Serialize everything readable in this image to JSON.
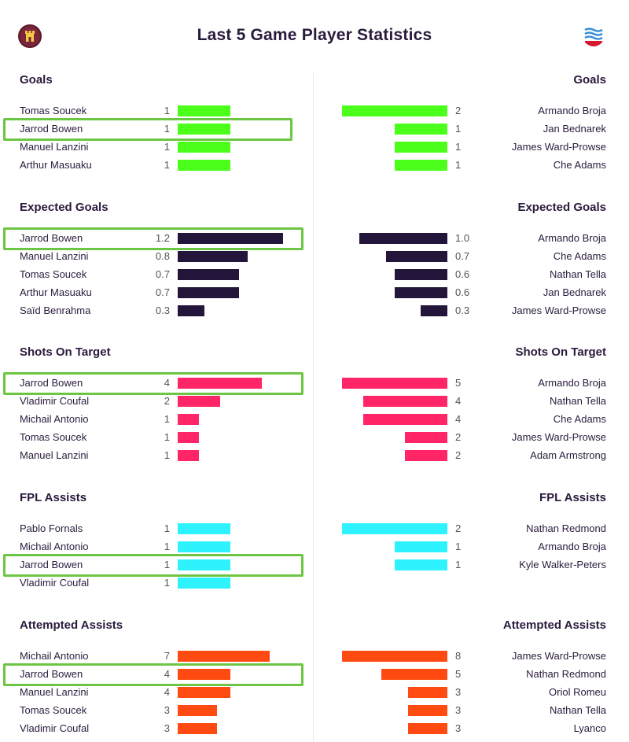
{
  "title": "Last 5 Game Player Statistics",
  "home_badge_icon": "castle-icon",
  "away_badge_icon": "waves-icon",
  "colors": {
    "goals": "#4cff1a",
    "expected_goals": "#24163a",
    "shots_on_target": "#ff2566",
    "fpl_assists": "#2ef3ff",
    "attempted_assists": "#ff4a12",
    "highlight": "#6cc644"
  },
  "highlighted_player": "Jarrod Bowen",
  "sections": [
    {
      "key": "goals",
      "title": "Goals",
      "max": 2,
      "home": [
        {
          "name": "Tomas Soucek",
          "value": 1,
          "label": "1"
        },
        {
          "name": "Jarrod Bowen",
          "value": 1,
          "label": "1"
        },
        {
          "name": "Manuel Lanzini",
          "value": 1,
          "label": "1"
        },
        {
          "name": "Arthur Masuaku",
          "value": 1,
          "label": "1"
        }
      ],
      "away": [
        {
          "name": "Armando Broja",
          "value": 2,
          "label": "2"
        },
        {
          "name": "Jan Bednarek",
          "value": 1,
          "label": "1"
        },
        {
          "name": "James Ward-Prowse",
          "value": 1,
          "label": "1"
        },
        {
          "name": "Che Adams",
          "value": 1,
          "label": "1"
        }
      ]
    },
    {
      "key": "expected_goals",
      "title": "Expected Goals",
      "max": 1.2,
      "home": [
        {
          "name": "Jarrod Bowen",
          "value": 1.2,
          "label": "1.2"
        },
        {
          "name": "Manuel Lanzini",
          "value": 0.8,
          "label": "0.8"
        },
        {
          "name": "Tomas Soucek",
          "value": 0.7,
          "label": "0.7"
        },
        {
          "name": "Arthur Masuaku",
          "value": 0.7,
          "label": "0.7"
        },
        {
          "name": "Saïd Benrahma",
          "value": 0.3,
          "label": "0.3"
        }
      ],
      "away": [
        {
          "name": "Armando Broja",
          "value": 1.0,
          "label": "1.0"
        },
        {
          "name": "Che Adams",
          "value": 0.7,
          "label": "0.7"
        },
        {
          "name": "Nathan Tella",
          "value": 0.6,
          "label": "0.6"
        },
        {
          "name": "Jan Bednarek",
          "value": 0.6,
          "label": "0.6"
        },
        {
          "name": "James Ward-Prowse",
          "value": 0.3,
          "label": "0.3"
        }
      ]
    },
    {
      "key": "shots_on_target",
      "title": "Shots On Target",
      "max": 5,
      "home": [
        {
          "name": "Jarrod Bowen",
          "value": 4,
          "label": "4"
        },
        {
          "name": "Vladimir Coufal",
          "value": 2,
          "label": "2"
        },
        {
          "name": "Michail Antonio",
          "value": 1,
          "label": "1"
        },
        {
          "name": "Tomas Soucek",
          "value": 1,
          "label": "1"
        },
        {
          "name": "Manuel Lanzini",
          "value": 1,
          "label": "1"
        }
      ],
      "away": [
        {
          "name": "Armando Broja",
          "value": 5,
          "label": "5"
        },
        {
          "name": "Nathan Tella",
          "value": 4,
          "label": "4"
        },
        {
          "name": "Che Adams",
          "value": 4,
          "label": "4"
        },
        {
          "name": "James Ward-Prowse",
          "value": 2,
          "label": "2"
        },
        {
          "name": "Adam Armstrong",
          "value": 2,
          "label": "2"
        }
      ]
    },
    {
      "key": "fpl_assists",
      "title": "FPL Assists",
      "max": 2,
      "home": [
        {
          "name": "Pablo Fornals",
          "value": 1,
          "label": "1"
        },
        {
          "name": "Michail Antonio",
          "value": 1,
          "label": "1"
        },
        {
          "name": "Jarrod Bowen",
          "value": 1,
          "label": "1"
        },
        {
          "name": "Vladimir Coufal",
          "value": 1,
          "label": "1"
        }
      ],
      "away": [
        {
          "name": "Nathan Redmond",
          "value": 2,
          "label": "2"
        },
        {
          "name": "Armando Broja",
          "value": 1,
          "label": "1"
        },
        {
          "name": "Kyle Walker-Peters",
          "value": 1,
          "label": "1"
        }
      ]
    },
    {
      "key": "attempted_assists",
      "title": "Attempted Assists",
      "max": 8,
      "home": [
        {
          "name": "Michail Antonio",
          "value": 7,
          "label": "7"
        },
        {
          "name": "Jarrod Bowen",
          "value": 4,
          "label": "4"
        },
        {
          "name": "Manuel Lanzini",
          "value": 4,
          "label": "4"
        },
        {
          "name": "Tomas Soucek",
          "value": 3,
          "label": "3"
        },
        {
          "name": "Vladimir Coufal",
          "value": 3,
          "label": "3"
        }
      ],
      "away": [
        {
          "name": "James Ward-Prowse",
          "value": 8,
          "label": "8"
        },
        {
          "name": "Nathan Redmond",
          "value": 5,
          "label": "5"
        },
        {
          "name": "Oriol Romeu",
          "value": 3,
          "label": "3"
        },
        {
          "name": "Nathan Tella",
          "value": 3,
          "label": "3"
        },
        {
          "name": "Lyanco",
          "value": 3,
          "label": "3"
        }
      ]
    }
  ]
}
